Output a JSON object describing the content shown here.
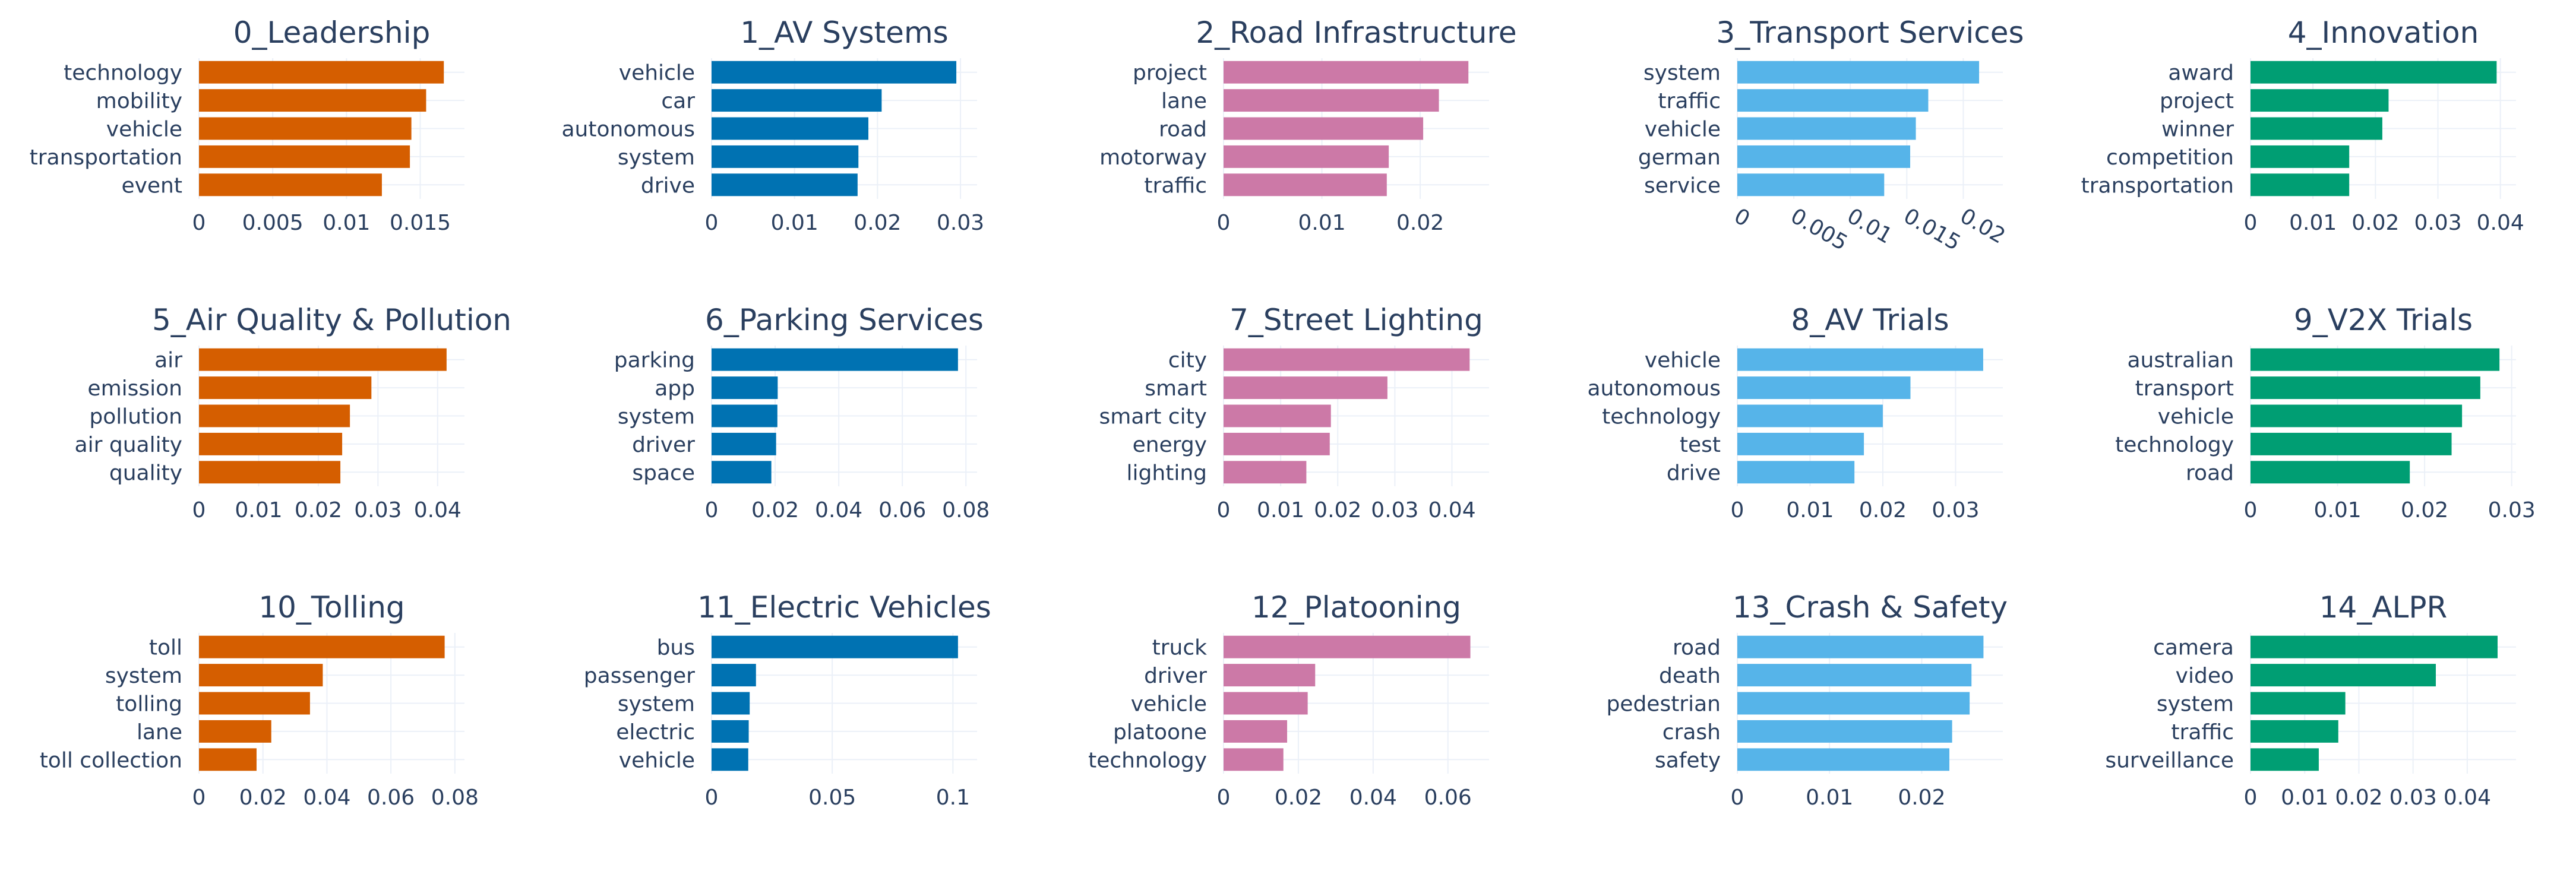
{
  "chart_data": [
    {
      "type": "bar",
      "orientation": "horizontal",
      "title": "0_Leadership",
      "color": "#d55e00",
      "categories": [
        "technology",
        "mobility",
        "vehicle",
        "transportation",
        "event"
      ],
      "values": [
        0.0166,
        0.0154,
        0.0144,
        0.0143,
        0.0124
      ],
      "xlim": [
        0,
        0.018
      ],
      "ticks": [
        0,
        0.005,
        0.01,
        0.015
      ],
      "tick_labels": [
        "0",
        "0.005",
        "0.01",
        "0.015"
      ]
    },
    {
      "type": "bar",
      "orientation": "horizontal",
      "title": "1_AV Systems",
      "color": "#0072b2",
      "categories": [
        "vehicle",
        "car",
        "autonomous",
        "system",
        "drive"
      ],
      "values": [
        0.0295,
        0.0205,
        0.0189,
        0.0177,
        0.0176
      ],
      "xlim": [
        0,
        0.032
      ],
      "ticks": [
        0,
        0.01,
        0.02,
        0.03
      ],
      "tick_labels": [
        "0",
        "0.01",
        "0.02",
        "0.03"
      ]
    },
    {
      "type": "bar",
      "orientation": "horizontal",
      "title": "2_Road Infrastructure",
      "color": "#cc79a7",
      "categories": [
        "project",
        "lane",
        "road",
        "motorway",
        "traffic"
      ],
      "values": [
        0.0249,
        0.0219,
        0.0203,
        0.0168,
        0.0166
      ],
      "xlim": [
        0,
        0.027
      ],
      "ticks": [
        0,
        0.01,
        0.02
      ],
      "tick_labels": [
        "0",
        "0.01",
        "0.02"
      ]
    },
    {
      "type": "bar",
      "orientation": "horizontal",
      "title": "3_Transport Services",
      "color": "#56b4e9",
      "categories": [
        "system",
        "traffic",
        "vehicle",
        "german",
        "service"
      ],
      "values": [
        0.0214,
        0.0169,
        0.0158,
        0.0153,
        0.013
      ],
      "xlim": [
        0,
        0.0235
      ],
      "ticks": [
        0,
        0.005,
        0.01,
        0.015,
        0.02
      ],
      "tick_labels": [
        "0",
        "0.005",
        "0.01",
        "0.015",
        "0.02"
      ],
      "tick_angle": 30
    },
    {
      "type": "bar",
      "orientation": "horizontal",
      "title": "4_Innovation",
      "color": "#009e73",
      "categories": [
        "award",
        "project",
        "winner",
        "competition",
        "transportation"
      ],
      "values": [
        0.0394,
        0.0221,
        0.0211,
        0.0158,
        0.0158
      ],
      "xlim": [
        0,
        0.0425
      ],
      "ticks": [
        0,
        0.01,
        0.02,
        0.03,
        0.04
      ],
      "tick_labels": [
        "0",
        "0.01",
        "0.02",
        "0.03",
        "0.04"
      ]
    },
    {
      "type": "bar",
      "orientation": "horizontal",
      "title": "5_Air Quality & Pollution",
      "color": "#d55e00",
      "categories": [
        "air",
        "emission",
        "pollution",
        "air quality",
        "quality"
      ],
      "values": [
        0.0415,
        0.0289,
        0.0253,
        0.024,
        0.0237
      ],
      "xlim": [
        0,
        0.0445
      ],
      "ticks": [
        0,
        0.01,
        0.02,
        0.03,
        0.04
      ],
      "tick_labels": [
        "0",
        "0.01",
        "0.02",
        "0.03",
        "0.04"
      ]
    },
    {
      "type": "bar",
      "orientation": "horizontal",
      "title": "6_Parking Services",
      "color": "#0072b2",
      "categories": [
        "parking",
        "app",
        "system",
        "driver",
        "space"
      ],
      "values": [
        0.0775,
        0.0208,
        0.0207,
        0.0203,
        0.0188
      ],
      "xlim": [
        0,
        0.0835
      ],
      "ticks": [
        0,
        0.02,
        0.04,
        0.06,
        0.08
      ],
      "tick_labels": [
        "0",
        "0.02",
        "0.04",
        "0.06",
        "0.08"
      ]
    },
    {
      "type": "bar",
      "orientation": "horizontal",
      "title": "7_Street Lighting",
      "color": "#cc79a7",
      "categories": [
        "city",
        "smart",
        "smart city",
        "energy",
        "lighting"
      ],
      "values": [
        0.0431,
        0.0287,
        0.0188,
        0.0186,
        0.0145
      ],
      "xlim": [
        0,
        0.0465
      ],
      "ticks": [
        0,
        0.01,
        0.02,
        0.03,
        0.04
      ],
      "tick_labels": [
        "0",
        "0.01",
        "0.02",
        "0.03",
        "0.04"
      ]
    },
    {
      "type": "bar",
      "orientation": "horizontal",
      "title": "8_AV Trials",
      "color": "#56b4e9",
      "categories": [
        "vehicle",
        "autonomous",
        "technology",
        "test",
        "drive"
      ],
      "values": [
        0.0338,
        0.0238,
        0.02,
        0.0174,
        0.0161
      ],
      "xlim": [
        0,
        0.0365
      ],
      "ticks": [
        0,
        0.01,
        0.02,
        0.03
      ],
      "tick_labels": [
        "0",
        "0.01",
        "0.02",
        "0.03"
      ]
    },
    {
      "type": "bar",
      "orientation": "horizontal",
      "title": "9_V2X Trials",
      "color": "#009e73",
      "categories": [
        "australian",
        "transport",
        "vehicle",
        "technology",
        "road"
      ],
      "values": [
        0.0286,
        0.0264,
        0.0243,
        0.0231,
        0.0183
      ],
      "xlim": [
        0,
        0.0305
      ],
      "ticks": [
        0,
        0.01,
        0.02,
        0.03
      ],
      "tick_labels": [
        "0",
        "0.01",
        "0.02",
        "0.03"
      ]
    },
    {
      "type": "bar",
      "orientation": "horizontal",
      "title": "10_Tolling",
      "color": "#d55e00",
      "categories": [
        "toll",
        "system",
        "tolling",
        "lane",
        "toll collection"
      ],
      "values": [
        0.0768,
        0.0387,
        0.0347,
        0.0226,
        0.018
      ],
      "xlim": [
        0,
        0.083
      ],
      "ticks": [
        0,
        0.02,
        0.04,
        0.06,
        0.08
      ],
      "tick_labels": [
        "0",
        "0.02",
        "0.04",
        "0.06",
        "0.08"
      ]
    },
    {
      "type": "bar",
      "orientation": "horizontal",
      "title": "11_Electric Vehicles",
      "color": "#0072b2",
      "categories": [
        "bus",
        "passenger",
        "system",
        "electric",
        "vehicle"
      ],
      "values": [
        0.1021,
        0.0184,
        0.0158,
        0.0154,
        0.0152
      ],
      "xlim": [
        0,
        0.11
      ],
      "ticks": [
        0,
        0.05,
        0.1
      ],
      "tick_labels": [
        "0",
        "0.05",
        "0.1"
      ]
    },
    {
      "type": "bar",
      "orientation": "horizontal",
      "title": "12_Platooning",
      "color": "#cc79a7",
      "categories": [
        "truck",
        "driver",
        "vehicle",
        "platoone",
        "technology"
      ],
      "values": [
        0.066,
        0.0245,
        0.0225,
        0.017,
        0.016
      ],
      "xlim": [
        0,
        0.071
      ],
      "ticks": [
        0,
        0.02,
        0.04,
        0.06
      ],
      "tick_labels": [
        "0",
        "0.02",
        "0.04",
        "0.06"
      ]
    },
    {
      "type": "bar",
      "orientation": "horizontal",
      "title": "13_Crash & Safety",
      "color": "#56b4e9",
      "categories": [
        "road",
        "death",
        "pedestrian",
        "crash",
        "safety"
      ],
      "values": [
        0.0267,
        0.0254,
        0.0252,
        0.0233,
        0.023
      ],
      "xlim": [
        0,
        0.0288
      ],
      "ticks": [
        0,
        0.01,
        0.02
      ],
      "tick_labels": [
        "0",
        "0.01",
        "0.02"
      ]
    },
    {
      "type": "bar",
      "orientation": "horizontal",
      "title": "14_ALPR",
      "color": "#009e73",
      "categories": [
        "camera",
        "video",
        "system",
        "traffic",
        "surveillance"
      ],
      "values": [
        0.0456,
        0.0342,
        0.0175,
        0.0162,
        0.0126
      ],
      "xlim": [
        0,
        0.049
      ],
      "ticks": [
        0,
        0.01,
        0.02,
        0.03,
        0.04
      ],
      "tick_labels": [
        "0",
        "0.01",
        "0.02",
        "0.03",
        "0.04"
      ]
    }
  ]
}
